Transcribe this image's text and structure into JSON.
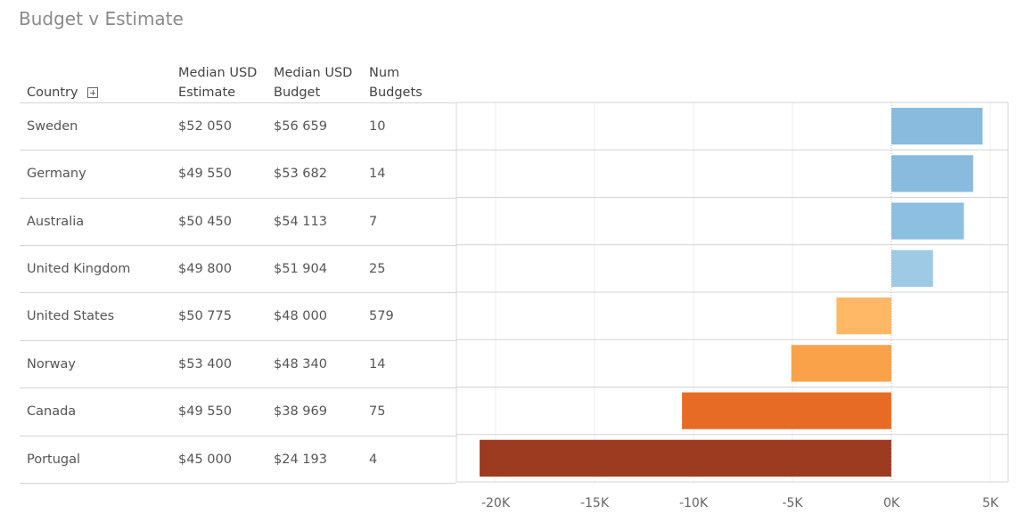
{
  "title": "Budget v Estimate",
  "headers": {
    "country": "Country",
    "estimate": [
      "Median USD",
      "Estimate"
    ],
    "budget": [
      "Median USD",
      "Budget"
    ],
    "num": [
      "Num",
      "Budgets"
    ]
  },
  "rows": [
    {
      "country": "Sweden",
      "estimate": "$52 050",
      "budget": "$56 659",
      "num": "10"
    },
    {
      "country": "Germany",
      "estimate": "$49 550",
      "budget": "$53 682",
      "num": "14"
    },
    {
      "country": "Australia",
      "estimate": "$50 450",
      "budget": "$54 113",
      "num": "7"
    },
    {
      "country": "United Kingdom",
      "estimate": "$49 800",
      "budget": "$51 904",
      "num": "25"
    },
    {
      "country": "United States",
      "estimate": "$50 775",
      "budget": "$48 000",
      "num": "579"
    },
    {
      "country": "Norway",
      "estimate": "$53 400",
      "budget": "$48 340",
      "num": "14"
    },
    {
      "country": "Canada",
      "estimate": "$49 550",
      "budget": "$38 969",
      "num": "75"
    },
    {
      "country": "Portugal",
      "estimate": "$45 000",
      "budget": "$24 193",
      "num": "4"
    }
  ],
  "chart_data": {
    "type": "bar",
    "orientation": "horizontal",
    "categories": [
      "Sweden",
      "Germany",
      "Australia",
      "United Kingdom",
      "United States",
      "Norway",
      "Canada",
      "Portugal"
    ],
    "values": [
      4609,
      4132,
      3663,
      2104,
      -2775,
      -5060,
      -10581,
      -20807
    ],
    "colors": [
      "#88bbdd",
      "#88bbdd",
      "#8dbfe0",
      "#9ecae6",
      "#ffb865",
      "#f9a24a",
      "#e86b25",
      "#9c3b20"
    ],
    "xlim": [
      -22000,
      6000
    ],
    "xticks": [
      -20000,
      -15000,
      -10000,
      -5000,
      0,
      5000
    ],
    "xtick_labels": [
      "-20K",
      "-15K",
      "-10K",
      "-5K",
      "0K",
      "5K"
    ],
    "grid": true
  }
}
